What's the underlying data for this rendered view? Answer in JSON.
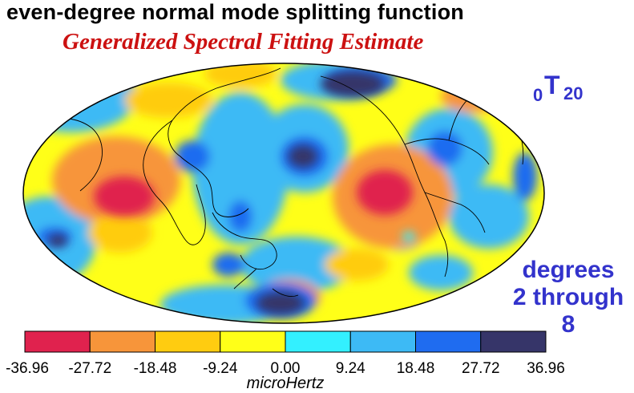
{
  "title": "even-degree normal mode splitting function",
  "subtitle": "Generalized Spectral Fitting Estimate",
  "mode_label": {
    "prefix": "0",
    "letter": "T",
    "suffix": "20"
  },
  "degrees_label": {
    "line1": "degrees",
    "line2": "2 through 8"
  },
  "colorbar": {
    "unit_label": "microHertz",
    "ticks": [
      "-36.96",
      "-27.72",
      "-18.48",
      "-9.24",
      "0.00",
      "9.24",
      "18.48",
      "27.72",
      "36.96"
    ],
    "colors": [
      "#e0224e",
      "#f7953a",
      "#ffcc10",
      "#ffff18",
      "#33f0ff",
      "#3dbaf5",
      "#1f6cf0",
      "#363569"
    ]
  },
  "map_colors": {
    "ocean_base": "#ffff18",
    "coast": "#000000"
  }
}
